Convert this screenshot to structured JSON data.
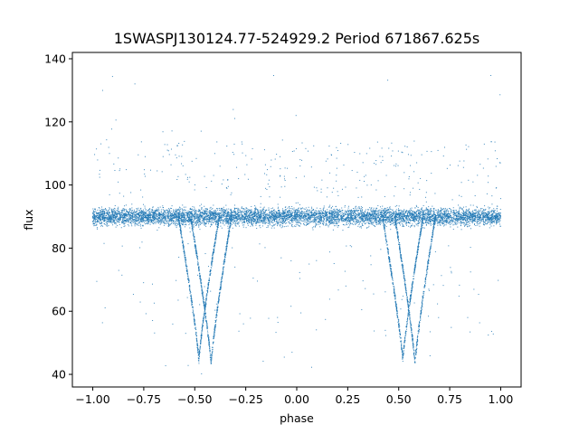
{
  "chart_data": {
    "type": "scatter",
    "title": "1SWASPJ130124.77-524929.2 Period 671867.625s",
    "xlabel": "phase",
    "ylabel": "flux",
    "xlim": [
      -1.1,
      1.1
    ],
    "ylim": [
      36,
      142
    ],
    "xticks": [
      -1.0,
      -0.75,
      -0.5,
      -0.25,
      0.0,
      0.25,
      0.5,
      0.75,
      1.0
    ],
    "xtick_labels": [
      "−1.00",
      "−0.75",
      "−0.50",
      "−0.25",
      "0.00",
      "0.25",
      "0.50",
      "0.75",
      "1.00"
    ],
    "yticks": [
      40,
      60,
      80,
      100,
      120,
      140
    ],
    "ytick_labels": [
      "40",
      "60",
      "80",
      "100",
      "120",
      "140"
    ],
    "grid": false,
    "legend": "none",
    "marker_color": "#1f77b4",
    "series": [
      {
        "baseline_flux": 90,
        "phase_range": [
          -1.0,
          1.0
        ],
        "eclipses": [
          {
            "center_phase": -0.48,
            "min_flux": 44.5,
            "half_width": 0.1
          },
          {
            "center_phase": -0.42,
            "min_flux": 43.5,
            "half_width": 0.1
          },
          {
            "center_phase": 0.52,
            "min_flux": 44.5,
            "half_width": 0.1
          },
          {
            "center_phase": 0.58,
            "min_flux": 43.5,
            "half_width": 0.1
          }
        ]
      }
    ]
  }
}
